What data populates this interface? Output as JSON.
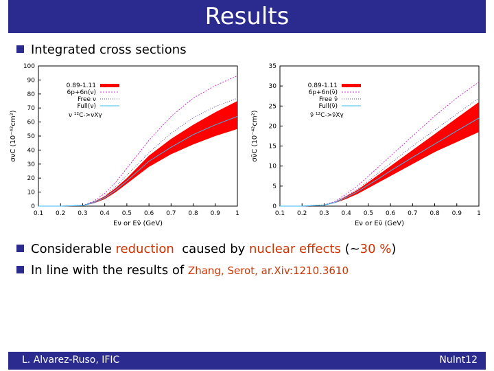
{
  "title": "Results",
  "bullets": {
    "b1": "Integrated cross sections",
    "b2_pre": "Considerable ",
    "b2_red": "reduction",
    "b2_mid": "  caused by ",
    "b2_nuc": "nuclear effects",
    "b2_paren_open": " (~",
    "b2_pct": "30 %",
    "b2_paren_close": ")",
    "b3": "In line with the results of ",
    "b3_ref": "Zhang, Serot, ar.Xiv:1210.3610"
  },
  "footer": {
    "left": "L. Alvarez-Ruso, IFIC",
    "right": "NuInt12"
  },
  "colors": {
    "band": "#ff0000",
    "sixp": "#cc33cc",
    "free": "#5555aa",
    "full": "#33bbee",
    "accent": "#2b2b8f"
  },
  "chart_data": [
    {
      "type": "line",
      "title": "",
      "xlabel": "Eν or Eν̄ (GeV)",
      "ylabel": "σνC (10⁻⁴²cm²)",
      "xlim": [
        0.1,
        1.0
      ],
      "ylim": [
        0,
        100
      ],
      "xticks": [
        0.1,
        0.2,
        0.3,
        0.4,
        0.5,
        0.6,
        0.7,
        0.8,
        0.9,
        1
      ],
      "yticks": [
        0,
        10,
        20,
        30,
        40,
        50,
        60,
        70,
        80,
        90,
        100
      ],
      "legend_title": "ν ¹²C->νXγ",
      "legend": [
        "0.89-1.11",
        "6p+6n(ν)",
        "Free ν",
        "Full(ν)"
      ],
      "x": [
        0.1,
        0.2,
        0.3,
        0.35,
        0.4,
        0.45,
        0.5,
        0.55,
        0.6,
        0.7,
        0.8,
        0.9,
        1.0
      ],
      "band": {
        "name": "0.89-1.11",
        "lower": [
          0,
          0,
          0.3,
          2,
          5,
          10,
          16,
          22,
          28,
          37,
          44,
          50,
          55
        ],
        "upper": [
          0,
          0,
          0.5,
          3,
          7,
          13,
          20,
          28,
          36,
          48,
          58,
          67,
          75
        ]
      },
      "series": [
        {
          "name": "6p+6n(ν)",
          "values": [
            0,
            0,
            0.5,
            3.5,
            9,
            17,
            27,
            37,
            47,
            64,
            77,
            86,
            93
          ]
        },
        {
          "name": "Free ν",
          "values": [
            0,
            0,
            0.4,
            3,
            7,
            14,
            22,
            30,
            38,
            52,
            63,
            71,
            77
          ]
        },
        {
          "name": "Full(ν)",
          "values": [
            0,
            0,
            0.4,
            2.5,
            6,
            11.5,
            18,
            25,
            32,
            42,
            51,
            58,
            64
          ]
        }
      ]
    },
    {
      "type": "line",
      "title": "",
      "xlabel": "Eν or Eν̄ (GeV)",
      "ylabel": "σν̄C (10⁻⁴²cm²)",
      "xlim": [
        0.1,
        1.0
      ],
      "ylim": [
        0,
        35
      ],
      "xticks": [
        0.1,
        0.2,
        0.3,
        0.4,
        0.5,
        0.6,
        0.7,
        0.8,
        0.9,
        1
      ],
      "yticks": [
        0,
        5,
        10,
        15,
        20,
        25,
        30,
        35
      ],
      "legend_title": "ν̄ ¹²C->ν̄Xγ",
      "legend": [
        "0.89-1.11",
        "6p+6n(ν̄)",
        "Free ν̄",
        "Full(ν̄)"
      ],
      "x": [
        0.1,
        0.2,
        0.3,
        0.35,
        0.4,
        0.45,
        0.5,
        0.55,
        0.6,
        0.7,
        0.8,
        0.9,
        1.0
      ],
      "band": {
        "name": "0.89-1.11",
        "lower": [
          0,
          0,
          0.2,
          0.8,
          1.8,
          3,
          4.5,
          6,
          7.5,
          10.5,
          13.5,
          16,
          18.5
        ],
        "upper": [
          0,
          0,
          0.3,
          1,
          2.5,
          4,
          6,
          8,
          10,
          14,
          18,
          22,
          26
        ]
      },
      "series": [
        {
          "name": "6p+6n(ν̄)",
          "values": [
            0,
            0,
            0.3,
            1.2,
            3,
            5,
            7.5,
            10,
            12.5,
            17.5,
            22.5,
            27,
            31
          ]
        },
        {
          "name": "Free ν̄",
          "values": [
            0,
            0,
            0.3,
            1,
            2.5,
            4.2,
            6.3,
            8.5,
            10.7,
            15,
            19,
            23,
            27
          ]
        },
        {
          "name": "Full(ν̄)",
          "values": [
            0,
            0,
            0.25,
            0.9,
            2.2,
            3.6,
            5.3,
            7,
            8.8,
            12.2,
            15.5,
            18.8,
            22
          ]
        }
      ]
    }
  ]
}
